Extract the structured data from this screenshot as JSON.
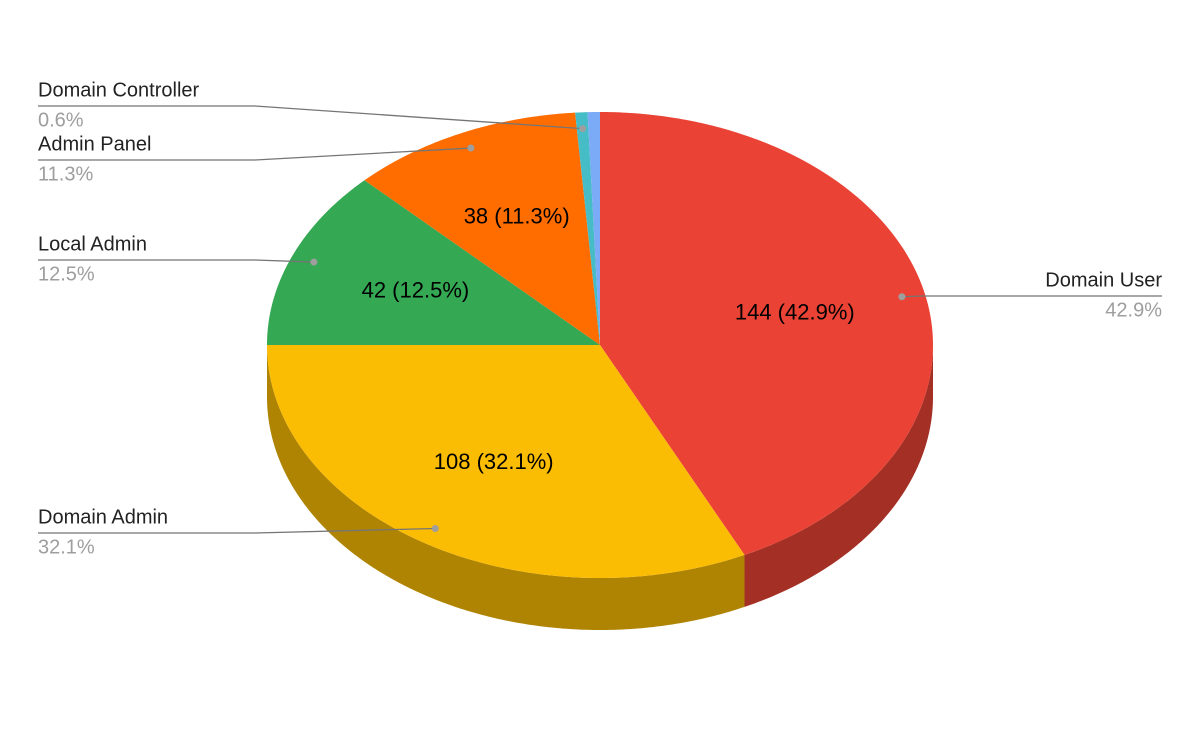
{
  "chart_data": {
    "type": "pie3d",
    "categories": [
      "Domain User",
      "Domain Admin",
      "Local Admin",
      "Admin Panel",
      "Domain Controller",
      null
    ],
    "values": [
      144,
      108,
      42,
      38,
      2,
      2
    ],
    "value_labels": [
      "144 (42.9%)",
      "108 (32.1%)",
      "42 (12.5%)",
      "38 (11.3%)",
      null,
      null
    ],
    "percent_labels": [
      "42.9%",
      "32.1%",
      "12.5%",
      "11.3%",
      "0.6%",
      null
    ],
    "colors": [
      "#ea4335",
      "#fbbc04",
      "#34a853",
      "#ff6d01",
      "#46bdc6",
      "#7baaf7"
    ]
  }
}
